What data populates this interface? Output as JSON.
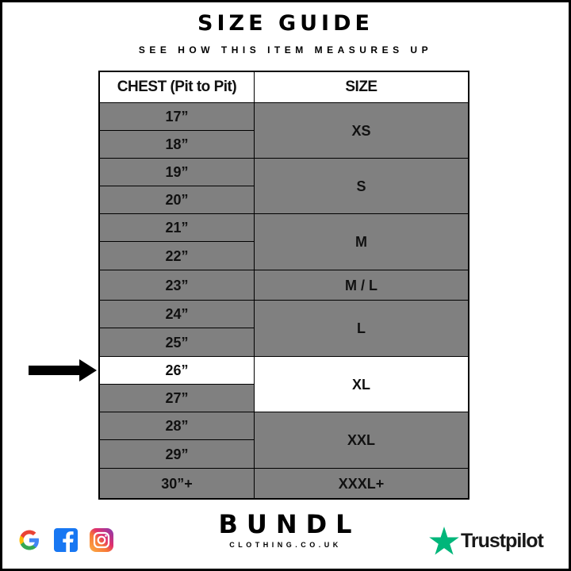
{
  "header": {
    "title": "SIZE GUIDE",
    "subtitle": "SEE HOW THIS ITEM MEASURES UP"
  },
  "table": {
    "columns": [
      "CHEST (Pit to Pit)",
      "SIZE"
    ],
    "chest": [
      "17”",
      "18”",
      "19”",
      "20”",
      "21”",
      "22”",
      "23”",
      "24”",
      "25”",
      "26”",
      "27”",
      "28”",
      "29”",
      "30”+"
    ],
    "sizes": [
      "XS",
      "S",
      "M",
      "M / L",
      "L",
      "XL",
      "XXL",
      "XXXL+"
    ],
    "highlighted_chest": "26”",
    "highlighted_size": "XL"
  },
  "colors": {
    "cell": "#808080",
    "highlight": "#ffffff",
    "trustpilot": "#00b67a"
  },
  "footer": {
    "social_icons": [
      "google-icon",
      "facebook-icon",
      "instagram-icon"
    ],
    "brand": "BUNDL",
    "brand_sub": "CLOTHING.CO.UK",
    "trustpilot": "Trustpilot"
  }
}
